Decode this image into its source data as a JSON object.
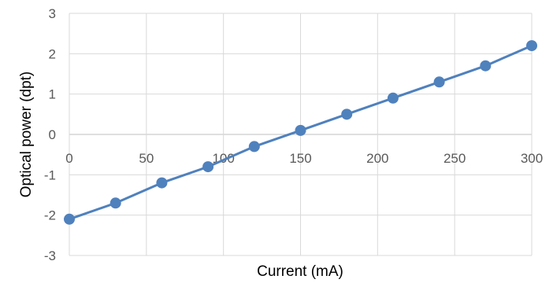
{
  "chart_data": {
    "type": "line",
    "title": "",
    "xlabel": "Current (mA)",
    "ylabel": "Optical power (dpt)",
    "xlim": [
      0,
      300
    ],
    "ylim": [
      -3,
      3
    ],
    "x_ticks": [
      0,
      50,
      100,
      150,
      200,
      250,
      300
    ],
    "y_ticks": [
      -3,
      -2,
      -1,
      0,
      1,
      2,
      3
    ],
    "grid": true,
    "legend": "none",
    "series_color": "#4f81bd",
    "series": [
      {
        "x": [
          0,
          30,
          60,
          90,
          120,
          150,
          180,
          210,
          240,
          270,
          300
        ],
        "values": [
          -2.1,
          -1.7,
          -1.2,
          -0.8,
          -0.3,
          0.1,
          0.5,
          0.9,
          1.3,
          1.7,
          2.2
        ]
      }
    ]
  }
}
